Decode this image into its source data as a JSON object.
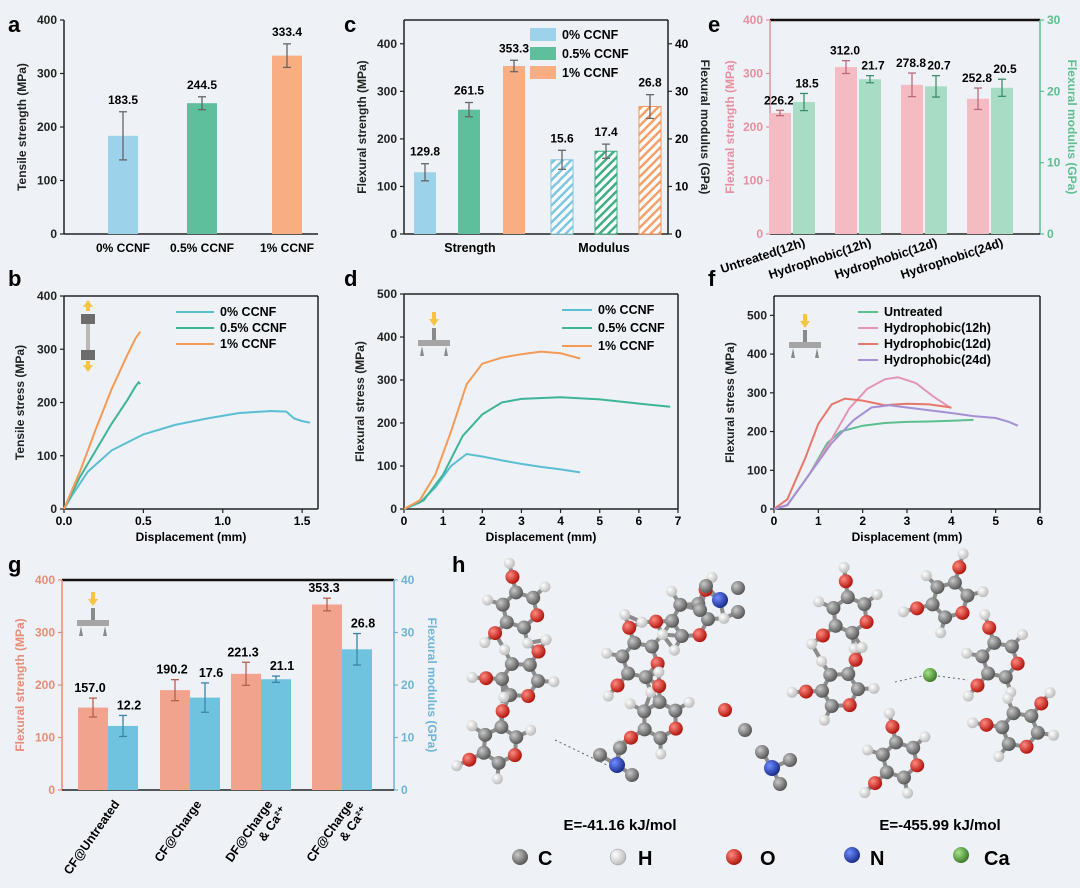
{
  "colors": {
    "blue": "#9dd3ea",
    "green": "#5dbf9c",
    "orange": "#f8ad82",
    "line_blue": "#5bbfd3",
    "line_green": "#3cb596",
    "line_orange": "#f59a55",
    "pink_bar": "#f4bcc2",
    "mint_bar": "#a8dcc5",
    "e_untreated": "#5bbf8e",
    "e_h12h": "#e494b4",
    "e_h12d": "#e7776a",
    "e_h24d": "#a58fd6",
    "g_salmon": "#f2a38e",
    "g_blue": "#6fc3df",
    "c_atom": "#7a7a7a",
    "h_atom": "#f4f4f4",
    "o_atom": "#d9302a",
    "n_atom": "#2a4fc4",
    "ca_atom": "#5aa83f"
  },
  "panels": {
    "a": {
      "letter": "a",
      "chart_data": {
        "type": "bar",
        "categories": [
          "0% CCNF",
          "0.5% CCNF",
          "1% CCNF"
        ],
        "values": [
          183.5,
          244.5,
          333.4
        ],
        "errors": [
          45,
          12,
          22
        ],
        "value_labels": [
          "183.5",
          "244.5",
          "333.4"
        ],
        "ylabel": "Tensile strength (MPa)",
        "ylim": [
          0,
          400
        ],
        "yticks": [
          "0",
          "100",
          "200",
          "300",
          "400"
        ]
      }
    },
    "b": {
      "letter": "b",
      "chart_data": {
        "type": "line",
        "xlabel": "Displacement (mm)",
        "ylabel": "Tensile stress (MPa)",
        "xlim": [
          0,
          1.6
        ],
        "ylim": [
          0,
          400
        ],
        "xticks": [
          "0.0",
          "0.5",
          "1.0",
          "1.5"
        ],
        "yticks": [
          "0",
          "100",
          "200",
          "300",
          "400"
        ],
        "legend": [
          "0% CCNF",
          "0.5% CCNF",
          "1% CCNF"
        ],
        "series": [
          {
            "name": "0% CCNF",
            "points": [
              [
                0,
                0
              ],
              [
                0.05,
                25
              ],
              [
                0.15,
                70
              ],
              [
                0.3,
                110
              ],
              [
                0.5,
                140
              ],
              [
                0.7,
                158
              ],
              [
                0.9,
                170
              ],
              [
                1.1,
                180
              ],
              [
                1.3,
                184
              ],
              [
                1.4,
                183
              ],
              [
                1.45,
                170
              ],
              [
                1.5,
                165
              ],
              [
                1.55,
                162
              ]
            ]
          },
          {
            "name": "0.5% CCNF",
            "points": [
              [
                0,
                0
              ],
              [
                0.05,
                30
              ],
              [
                0.1,
                60
              ],
              [
                0.2,
                110
              ],
              [
                0.3,
                160
              ],
              [
                0.4,
                205
              ],
              [
                0.45,
                230
              ],
              [
                0.47,
                238
              ],
              [
                0.48,
                235
              ]
            ]
          },
          {
            "name": "1% CCNF",
            "points": [
              [
                0,
                0
              ],
              [
                0.05,
                35
              ],
              [
                0.1,
                70
              ],
              [
                0.2,
                150
              ],
              [
                0.3,
                225
              ],
              [
                0.4,
                290
              ],
              [
                0.45,
                320
              ],
              [
                0.48,
                333
              ]
            ]
          }
        ]
      }
    },
    "c": {
      "letter": "c",
      "chart_data": {
        "type": "bar",
        "categories": [
          "Strength",
          "Modulus"
        ],
        "series": [
          {
            "name": "0% CCNF",
            "strength": 129.8,
            "modulus": 15.6,
            "strength_err": 18,
            "modulus_err": 2
          },
          {
            "name": "0.5% CCNF",
            "strength": 261.5,
            "modulus": 17.4,
            "strength_err": 15,
            "modulus_err": 1.5
          },
          {
            "name": "1% CCNF",
            "strength": 353.3,
            "modulus": 26.8,
            "strength_err": 12,
            "modulus_err": 2.5
          }
        ],
        "value_labels": [
          "129.8",
          "261.5",
          "353.3",
          "15.6",
          "17.4",
          "26.8"
        ],
        "ylabel": "Flexural strength (MPa)",
        "y2label": "Flexural modulus (GPa)",
        "ylim": [
          0,
          450
        ],
        "y2lim": [
          0,
          45
        ],
        "yticks": [
          "0",
          "100",
          "200",
          "300",
          "400"
        ],
        "y2ticks": [
          "0",
          "10",
          "20",
          "30",
          "40"
        ],
        "legend": [
          "0% CCNF",
          "0.5% CCNF",
          "1% CCNF"
        ]
      }
    },
    "d": {
      "letter": "d",
      "chart_data": {
        "type": "line",
        "xlabel": "Displacement (mm)",
        "ylabel": "Flexural stress (MPa)",
        "xlim": [
          0,
          7
        ],
        "ylim": [
          0,
          500
        ],
        "xticks": [
          "0",
          "1",
          "2",
          "3",
          "4",
          "5",
          "6",
          "7"
        ],
        "yticks": [
          "0",
          "100",
          "200",
          "300",
          "400",
          "500"
        ],
        "legend": [
          "0% CCNF",
          "0.5% CCNF",
          "1% CCNF"
        ],
        "series": [
          {
            "name": "0% CCNF",
            "points": [
              [
                0,
                0
              ],
              [
                0.4,
                15
              ],
              [
                0.8,
                50
              ],
              [
                1.2,
                100
              ],
              [
                1.6,
                128
              ],
              [
                2,
                122
              ],
              [
                2.5,
                113
              ],
              [
                3,
                105
              ],
              [
                3.5,
                98
              ],
              [
                4,
                92
              ],
              [
                4.5,
                85
              ]
            ]
          },
          {
            "name": "0.5% CCNF",
            "points": [
              [
                0,
                0
              ],
              [
                0.5,
                20
              ],
              [
                1,
                80
              ],
              [
                1.5,
                170
              ],
              [
                2,
                220
              ],
              [
                2.5,
                248
              ],
              [
                3,
                256
              ],
              [
                4,
                260
              ],
              [
                5,
                255
              ],
              [
                6,
                245
              ],
              [
                6.8,
                238
              ]
            ]
          },
          {
            "name": "1% CCNF",
            "points": [
              [
                0,
                0
              ],
              [
                0.4,
                20
              ],
              [
                0.8,
                80
              ],
              [
                1.2,
                180
              ],
              [
                1.6,
                290
              ],
              [
                2,
                338
              ],
              [
                2.5,
                352
              ],
              [
                3,
                360
              ],
              [
                3.5,
                366
              ],
              [
                4,
                362
              ],
              [
                4.5,
                350
              ]
            ]
          }
        ]
      }
    },
    "e": {
      "letter": "e",
      "chart_data": {
        "type": "bar",
        "categories": [
          "Untreated(12h)",
          "Hydrophobic(12h)",
          "Hydrophobic(12d)",
          "Hydrophobic(24d)"
        ],
        "series": [
          {
            "name": "Flexural strength",
            "values": [
              226.2,
              312.0,
              278.8,
              252.8
            ],
            "errors": [
              5,
              12,
              22,
              20
            ]
          },
          {
            "name": "Flexural modulus",
            "values": [
              18.5,
              21.7,
              20.7,
              20.5
            ],
            "errors": [
              1.2,
              0.5,
              1.5,
              1.2
            ]
          }
        ],
        "value_labels": [
          "226.2",
          "18.5",
          "312.0",
          "21.7",
          "278.8",
          "20.7",
          "252.8",
          "20.5"
        ],
        "ylabel": "Flexural strength (MPa)",
        "y2label": "Flexural modulus (GPa)",
        "ylim": [
          0,
          400
        ],
        "y2lim": [
          0,
          30
        ],
        "yticks": [
          "0",
          "100",
          "200",
          "300",
          "400"
        ],
        "y2ticks": [
          "0",
          "10",
          "20",
          "30"
        ]
      }
    },
    "f": {
      "letter": "f",
      "chart_data": {
        "type": "line",
        "xlabel": "Displacement (mm)",
        "ylabel": "Flexural stress (MPa)",
        "xlim": [
          0,
          6
        ],
        "ylim": [
          0,
          550
        ],
        "xticks": [
          "0",
          "1",
          "2",
          "3",
          "4",
          "5",
          "6"
        ],
        "yticks": [
          "0",
          "100",
          "200",
          "300",
          "400",
          "500"
        ],
        "legend": [
          "Untreated",
          "Hydrophobic(12h)",
          "Hydrophobic(12d)",
          "Hydrophobic(24d)"
        ],
        "series": [
          {
            "name": "Untreated",
            "points": [
              [
                0,
                0
              ],
              [
                0.3,
                10
              ],
              [
                0.8,
                90
              ],
              [
                1.2,
                170
              ],
              [
                1.5,
                200
              ],
              [
                2,
                215
              ],
              [
                2.5,
                222
              ],
              [
                3,
                225
              ],
              [
                3.5,
                226
              ],
              [
                4,
                228
              ],
              [
                4.5,
                230
              ]
            ]
          },
          {
            "name": "Hydrophobic(12h)",
            "points": [
              [
                0,
                0
              ],
              [
                0.3,
                10
              ],
              [
                0.8,
                90
              ],
              [
                1.3,
                180
              ],
              [
                1.7,
                260
              ],
              [
                2.1,
                310
              ],
              [
                2.5,
                335
              ],
              [
                2.8,
                340
              ],
              [
                3.2,
                325
              ],
              [
                3.6,
                290
              ],
              [
                4,
                260
              ]
            ]
          },
          {
            "name": "Hydrophobic(12d)",
            "points": [
              [
                0,
                0
              ],
              [
                0.3,
                25
              ],
              [
                0.7,
                130
              ],
              [
                1,
                220
              ],
              [
                1.3,
                270
              ],
              [
                1.6,
                285
              ],
              [
                2,
                280
              ],
              [
                2.5,
                268
              ],
              [
                3,
                272
              ],
              [
                3.5,
                270
              ],
              [
                4,
                262
              ]
            ]
          },
          {
            "name": "Hydrophobic(24d)",
            "points": [
              [
                0,
                0
              ],
              [
                0.3,
                10
              ],
              [
                0.8,
                90
              ],
              [
                1.3,
                170
              ],
              [
                1.8,
                230
              ],
              [
                2.2,
                262
              ],
              [
                2.6,
                268
              ],
              [
                3,
                262
              ],
              [
                3.5,
                255
              ],
              [
                4,
                248
              ],
              [
                4.5,
                240
              ],
              [
                5,
                235
              ],
              [
                5.3,
                225
              ],
              [
                5.5,
                215
              ]
            ]
          }
        ]
      }
    },
    "g": {
      "letter": "g",
      "chart_data": {
        "type": "bar",
        "categories": [
          "CF@Untreated",
          "CF@Charge",
          "DF@Charge & Ca²⁺",
          "CF@Charge & Ca²⁺"
        ],
        "category_lines": [
          [
            "CF@Untreated"
          ],
          [
            "CF@Charge"
          ],
          [
            "DF@Charge",
            "& Ca²⁺"
          ],
          [
            "CF@Charge",
            "& Ca²⁺"
          ]
        ],
        "series": [
          {
            "name": "Flexural strength",
            "values": [
              157.0,
              190.2,
              221.3,
              353.3
            ],
            "errors": [
              18,
              20,
              22,
              12
            ]
          },
          {
            "name": "Flexural modulus",
            "values": [
              12.2,
              17.6,
              21.1,
              26.8
            ],
            "errors": [
              2,
              2.8,
              0.6,
              3
            ]
          }
        ],
        "value_labels": [
          "157.0",
          "12.2",
          "190.2",
          "17.6",
          "221.3",
          "21.1",
          "353.3",
          "26.8"
        ],
        "ylabel": "Flexural strength (MPa)",
        "y2label": "Flexural modulus (GPa)",
        "ylim": [
          0,
          400
        ],
        "y2lim": [
          0,
          40
        ],
        "yticks": [
          "0",
          "100",
          "200",
          "300",
          "400"
        ],
        "y2ticks": [
          "0",
          "10",
          "20",
          "30",
          "40"
        ]
      }
    },
    "h": {
      "letter": "h",
      "energy1": "E=-41.16 kJ/mol",
      "energy2": "E=-455.99 kJ/mol",
      "atom_legend": [
        "C",
        "H",
        "O",
        "N",
        "Ca"
      ]
    }
  }
}
